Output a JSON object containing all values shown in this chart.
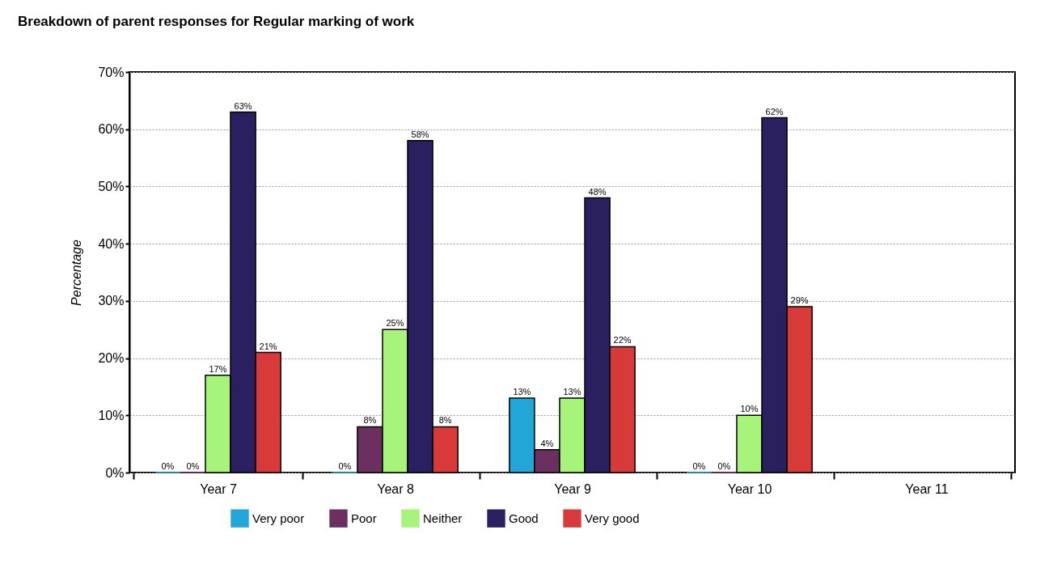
{
  "chart_data": {
    "type": "bar",
    "title": "Breakdown of parent responses for Regular marking of work",
    "ylabel": "Percentage",
    "categories": [
      "Year 7",
      "Year 8",
      "Year 9",
      "Year 10",
      "Year 11"
    ],
    "series": [
      {
        "name": "Very poor",
        "color": "#22a6d8",
        "values": [
          0,
          0,
          13,
          0,
          null
        ],
        "value_labels": [
          "0%",
          "0%",
          "13%",
          "0%",
          null
        ]
      },
      {
        "name": "Poor",
        "color": "#6b3060",
        "values": [
          0,
          8,
          4,
          0,
          null
        ],
        "value_labels": [
          "0%",
          "8%",
          "4%",
          "0%",
          null
        ]
      },
      {
        "name": "Neither",
        "color": "#a6f57a",
        "values": [
          17,
          25,
          13,
          10,
          null
        ],
        "value_labels": [
          "17%",
          "25%",
          "13%",
          "10%",
          null
        ]
      },
      {
        "name": "Good",
        "color": "#2a2060",
        "values": [
          63,
          58,
          48,
          62,
          null
        ],
        "value_labels": [
          "63%",
          "58%",
          "48%",
          "62%",
          null
        ]
      },
      {
        "name": "Very good",
        "color": "#d83a3a",
        "values": [
          21,
          8,
          22,
          29,
          null
        ],
        "value_labels": [
          "21%",
          "8%",
          "22%",
          "29%",
          null
        ]
      }
    ],
    "ylim": [
      0,
      70
    ],
    "yticks": [
      {
        "value": 0,
        "label": "0%"
      },
      {
        "value": 10,
        "label": "10%"
      },
      {
        "value": 20,
        "label": "20%"
      },
      {
        "value": 30,
        "label": "30%"
      },
      {
        "value": 40,
        "label": "40%"
      },
      {
        "value": 50,
        "label": "50%"
      },
      {
        "value": 60,
        "label": "60%"
      },
      {
        "value": 70,
        "label": "70%"
      }
    ],
    "grid": "y",
    "legend": "bottom"
  }
}
